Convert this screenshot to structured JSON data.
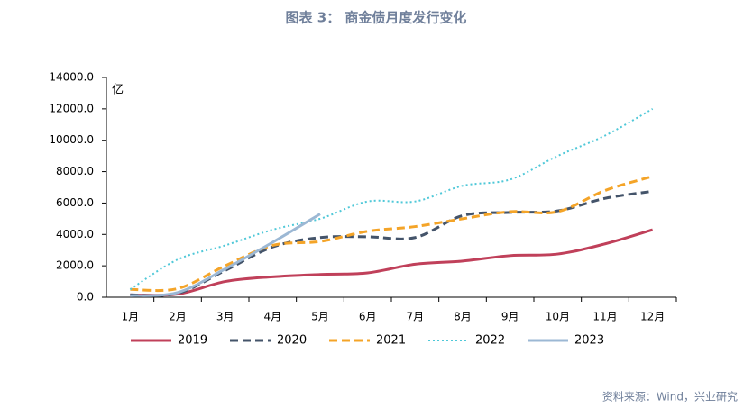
{
  "chart_data": {
    "type": "line",
    "title": "图表 3： 商金债月度发行变化",
    "y_unit": "亿",
    "source": "资料来源：Wind，兴业研究",
    "categories": [
      "1月",
      "2月",
      "3月",
      "4月",
      "5月",
      "6月",
      "7月",
      "8月",
      "9月",
      "10月",
      "11月",
      "12月"
    ],
    "series": [
      {
        "name": "2019",
        "color": "#c0405a",
        "style": "solid",
        "values": [
          150,
          200,
          1000,
          1300,
          1450,
          1550,
          2100,
          2300,
          2650,
          2750,
          3400,
          4300
        ]
      },
      {
        "name": "2020",
        "color": "#44546a",
        "style": "dashed",
        "values": [
          150,
          250,
          1700,
          3200,
          3800,
          3850,
          3800,
          5200,
          5400,
          5500,
          6300,
          6750
        ]
      },
      {
        "name": "2021",
        "color": "#f4a428",
        "style": "dashed",
        "values": [
          500,
          550,
          2000,
          3300,
          3550,
          4200,
          4500,
          5000,
          5450,
          5450,
          6800,
          7700
        ]
      },
      {
        "name": "2022",
        "color": "#4fc8d8",
        "style": "dotted",
        "values": [
          500,
          2400,
          3300,
          4300,
          5000,
          6100,
          6100,
          7100,
          7500,
          9000,
          10300,
          12000
        ]
      },
      {
        "name": "2023",
        "color": "#9cb8d4",
        "style": "solid",
        "values": [
          100,
          300,
          1800,
          3500,
          5300,
          null,
          null,
          null,
          null,
          null,
          null,
          null
        ]
      }
    ],
    "ylim": [
      0,
      14000
    ],
    "yticks": [
      {
        "value": 0,
        "label": "0.0"
      },
      {
        "value": 2000,
        "label": "2000.0"
      },
      {
        "value": 4000,
        "label": "4000.0"
      },
      {
        "value": 6000,
        "label": "6000.0"
      },
      {
        "value": 8000,
        "label": "8000.0"
      },
      {
        "value": 10000,
        "label": "10000.0"
      },
      {
        "value": 12000,
        "label": "12000.0"
      },
      {
        "value": 14000,
        "label": "14000.0"
      }
    ],
    "grid": false
  }
}
